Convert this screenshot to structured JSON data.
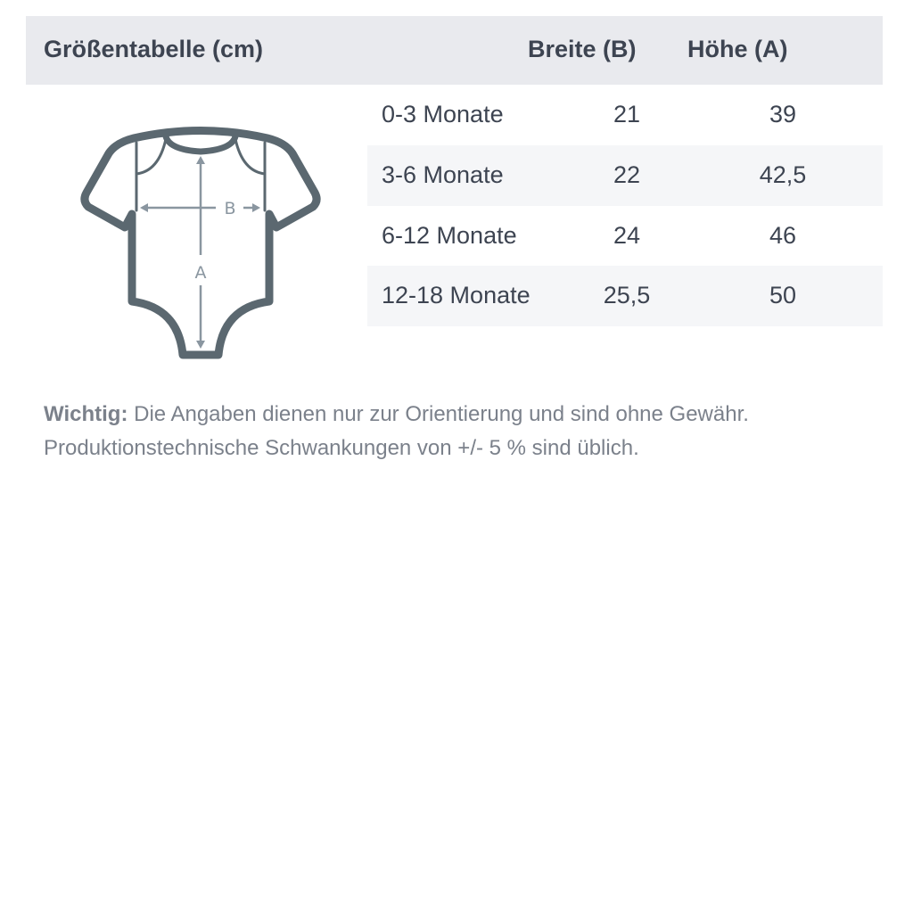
{
  "header": {
    "title": "Größentabelle (cm)",
    "col_breite": "Breite (B)",
    "col_hoehe": "Höhe (A)"
  },
  "rows": [
    {
      "size": "0-3 Monate",
      "breite": "21",
      "hoehe": "39"
    },
    {
      "size": "3-6 Monate",
      "breite": "22",
      "hoehe": "42,5"
    },
    {
      "size": "6-12 Monate",
      "breite": "24",
      "hoehe": "46"
    },
    {
      "size": "12-18 Monate",
      "breite": "25,5",
      "hoehe": "50"
    }
  ],
  "diagram": {
    "label_b": "B",
    "label_a": "A",
    "outline_color": "#5b6870",
    "arrow_color": "#8a96a0"
  },
  "note": {
    "label": "Wichtig:",
    "line1": "Die Angaben dienen nur zur Orientierung und sind ohne Gewähr.",
    "line2": "Produktionstechnische Schwankungen von +/- 5 % sind üblich."
  }
}
